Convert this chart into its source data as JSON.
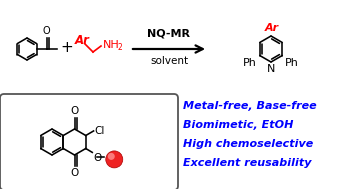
{
  "bg_color": "#ffffff",
  "text_blue": "#0000ff",
  "text_red": "#ff0000",
  "text_black": "#000000",
  "bullet_lines": [
    "Metal-free, Base-free",
    "Biomimetic, EtOH",
    "High chemoselective",
    "Excellent reusability"
  ],
  "arrow_label_top": "NQ-MR",
  "arrow_label_bot": "solvent",
  "box_edgecolor": "#555555",
  "bead_face": "#ee2222",
  "bead_highlight": "#ff9999",
  "mol_lw": 1.15,
  "ph_ring_r": 11,
  "pyr_ring_r": 13,
  "prod_ph_r": 9
}
